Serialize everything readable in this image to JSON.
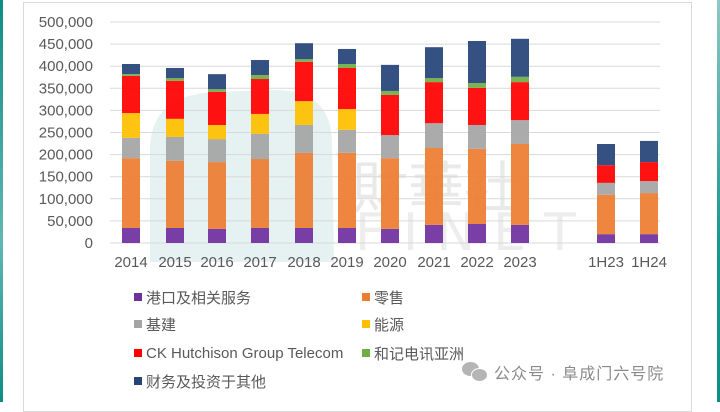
{
  "chart_data": {
    "type": "bar",
    "stacked": true,
    "title": "",
    "xlabel": "",
    "ylabel": "",
    "ylim": [
      0,
      500000
    ],
    "yticks": [
      0,
      50000,
      100000,
      150000,
      200000,
      250000,
      300000,
      350000,
      400000,
      450000,
      500000
    ],
    "ytick_labels": [
      "0",
      "50,000",
      "100,000",
      "150,000",
      "200,000",
      "250,000",
      "300,000",
      "350,000",
      "400,000",
      "450,000",
      "500,000"
    ],
    "grid": true,
    "legend_position": "bottom",
    "categories": [
      "2014",
      "2015",
      "2016",
      "2017",
      "2018",
      "2019",
      "2020",
      "2021",
      "2022",
      "2023",
      "1H23",
      "1H24"
    ],
    "series": [
      {
        "name": "港口及相关服务",
        "color": "#7030a0",
        "values": [
          34000,
          34000,
          32000,
          34000,
          34000,
          34000,
          32000,
          41000,
          43000,
          41000,
          20000,
          20000
        ]
      },
      {
        "name": "零售",
        "color": "#ed7d31",
        "values": [
          158000,
          152000,
          151000,
          156000,
          170000,
          170000,
          160000,
          174000,
          170000,
          183000,
          89000,
          93000
        ]
      },
      {
        "name": "基建",
        "color": "#a5a5a5",
        "values": [
          46000,
          54000,
          52000,
          57000,
          63000,
          52000,
          52000,
          56000,
          54000,
          54000,
          27000,
          27000
        ]
      },
      {
        "name": "能源",
        "color": "#ffc000",
        "values": [
          56000,
          41000,
          32000,
          45000,
          54000,
          47000,
          0,
          0,
          0,
          0,
          0,
          0
        ]
      },
      {
        "name": "CK Hutchison Group Telecom",
        "color": "#ff0000",
        "values": [
          84000,
          86000,
          75000,
          79000,
          89000,
          93000,
          91000,
          93000,
          84000,
          86000,
          40000,
          43000
        ]
      },
      {
        "name": "和记电讯亚洲",
        "color": "#70ad47",
        "values": [
          4000,
          6000,
          6000,
          9000,
          6000,
          9000,
          9000,
          9000,
          11000,
          12000,
          0,
          0
        ]
      },
      {
        "name": "财务及投资于其他",
        "color": "#264478",
        "values": [
          23000,
          23000,
          34000,
          34000,
          36000,
          34000,
          59000,
          70000,
          95000,
          86000,
          48000,
          48000
        ]
      }
    ]
  },
  "watermark": {
    "chinese": "財華社",
    "english": "FINET"
  },
  "footer": {
    "account_label": "公众号 · 阜成门六号院"
  }
}
